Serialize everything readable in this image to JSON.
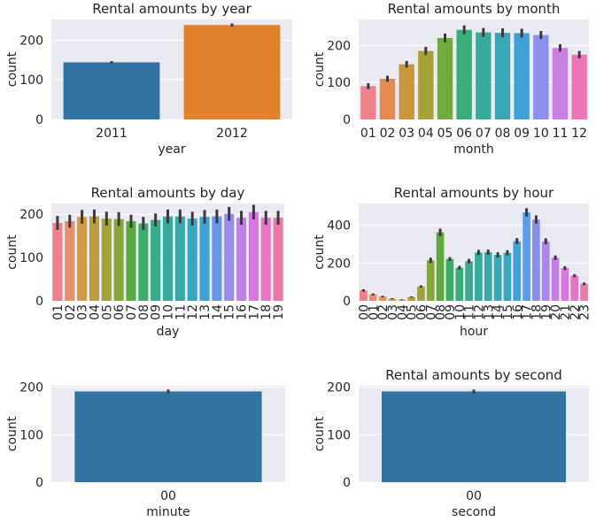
{
  "colors": {
    "plot_bg": "#eaeaf2",
    "grid": "#ffffff",
    "text": "#262626",
    "errbar": "#3b3b3b",
    "palette20": [
      "#f0808c",
      "#e8906c",
      "#d59a43",
      "#bd9e3a",
      "#a6a23a",
      "#8aa53a",
      "#5aaa3f",
      "#3aad6b",
      "#38ab8b",
      "#38aa9c",
      "#38a8ab",
      "#3aa6bd",
      "#3ea2d3",
      "#6a98e8",
      "#9a8ceb",
      "#c081e6",
      "#dc75e0",
      "#e875c8",
      "#ec78a8",
      "#ef7c96"
    ],
    "palette24": [
      "#f0808c",
      "#ea8c74",
      "#df9754",
      "#d39d3a",
      "#c09e3a",
      "#b0a03a",
      "#9fa33a",
      "#84a63a",
      "#5eaa3e",
      "#3aad62",
      "#38ac7e",
      "#38ab90",
      "#38aa9c",
      "#38a9a7",
      "#39a7b4",
      "#3ca5c4",
      "#3fa2d6",
      "#5c9ce8",
      "#8890ec",
      "#a988e9",
      "#c47fe5",
      "#dd75df",
      "#e876c6",
      "#ed79a8"
    ],
    "palette2": [
      "#3274a1",
      "#e1812c"
    ],
    "palette12": [
      "#f0808c",
      "#e58a50",
      "#c9973a",
      "#a6a23a",
      "#6fab3f",
      "#3aad7a",
      "#38a99d",
      "#3aa7b6",
      "#3ea3d4",
      "#8a90eb",
      "#c880e4",
      "#ee74b8"
    ],
    "single": "#3274a1"
  },
  "chart_data": [
    {
      "id": "year",
      "type": "bar",
      "title": "Rental amounts by year",
      "xlabel": "year",
      "ylabel": "count",
      "categories": [
        "2011",
        "2012"
      ],
      "values": [
        144,
        238
      ],
      "errors": [
        3,
        4
      ],
      "yticks": [
        0,
        100,
        200
      ],
      "ylim": [
        0,
        252
      ],
      "palette": "palette2",
      "rotate_ticks": false
    },
    {
      "id": "month",
      "type": "bar",
      "title": "Rental amounts by month",
      "xlabel": "month",
      "ylabel": "count",
      "categories": [
        "01",
        "02",
        "03",
        "04",
        "05",
        "06",
        "07",
        "08",
        "09",
        "10",
        "11",
        "12"
      ],
      "values": [
        90,
        110,
        149,
        185,
        220,
        242,
        235,
        234,
        233,
        228,
        193,
        175
      ],
      "errors": [
        8,
        8,
        9,
        11,
        12,
        12,
        12,
        12,
        12,
        11,
        10,
        10
      ],
      "yticks": [
        0,
        100,
        200
      ],
      "ylim": [
        0,
        270
      ],
      "palette": "palette12",
      "rotate_ticks": false
    },
    {
      "id": "day",
      "type": "bar",
      "title": "Rental amounts by day",
      "xlabel": "day",
      "ylabel": "count",
      "categories": [
        "01",
        "02",
        "03",
        "04",
        "05",
        "06",
        "07",
        "08",
        "09",
        "10",
        "11",
        "12",
        "13",
        "14",
        "15",
        "16",
        "17",
        "18",
        "19"
      ],
      "values": [
        180,
        184,
        194,
        195,
        190,
        189,
        184,
        179,
        187,
        195,
        195,
        190,
        194,
        195,
        201,
        192,
        205,
        192,
        192
      ],
      "errors": [
        16,
        15,
        16,
        16,
        16,
        16,
        15,
        15,
        15,
        16,
        16,
        16,
        16,
        16,
        16,
        16,
        17,
        16,
        16
      ],
      "yticks": [
        0,
        100,
        200
      ],
      "ylim": [
        0,
        225
      ],
      "palette": "palette20",
      "rotate_ticks": true
    },
    {
      "id": "hour",
      "type": "bar",
      "title": "Rental amounts by hour",
      "xlabel": "hour",
      "ylabel": "count",
      "categories": [
        "00",
        "01",
        "02",
        "03",
        "04",
        "05",
        "06",
        "07",
        "08",
        "09",
        "10",
        "11",
        "12",
        "13",
        "14",
        "15",
        "16",
        "17",
        "18",
        "19",
        "20",
        "21",
        "22",
        "23"
      ],
      "values": [
        55,
        34,
        23,
        11,
        6,
        20,
        76,
        214,
        362,
        221,
        175,
        210,
        256,
        257,
        243,
        254,
        316,
        468,
        430,
        315,
        228,
        173,
        133,
        90
      ],
      "errors": [
        6,
        5,
        4,
        3,
        2,
        3,
        6,
        14,
        20,
        10,
        10,
        12,
        14,
        14,
        14,
        14,
        16,
        22,
        22,
        16,
        12,
        10,
        8,
        7
      ],
      "yticks": [
        0,
        200,
        400
      ],
      "ylim": [
        0,
        515
      ],
      "palette": "palette24",
      "rotate_ticks": true
    },
    {
      "id": "minute",
      "type": "bar",
      "title": "",
      "xlabel": "minute",
      "ylabel": "count",
      "categories": [
        "00"
      ],
      "values": [
        191
      ],
      "errors": [
        4
      ],
      "yticks": [
        0,
        100,
        200
      ],
      "ylim": [
        0,
        203
      ],
      "palette": "single",
      "rotate_ticks": false
    },
    {
      "id": "second",
      "type": "bar",
      "title": "Rental amounts by second",
      "xlabel": "second",
      "ylabel": "count",
      "categories": [
        "00"
      ],
      "values": [
        191
      ],
      "errors": [
        4
      ],
      "yticks": [
        0,
        100,
        200
      ],
      "ylim": [
        0,
        203
      ],
      "palette": "single",
      "rotate_ticks": false
    }
  ]
}
